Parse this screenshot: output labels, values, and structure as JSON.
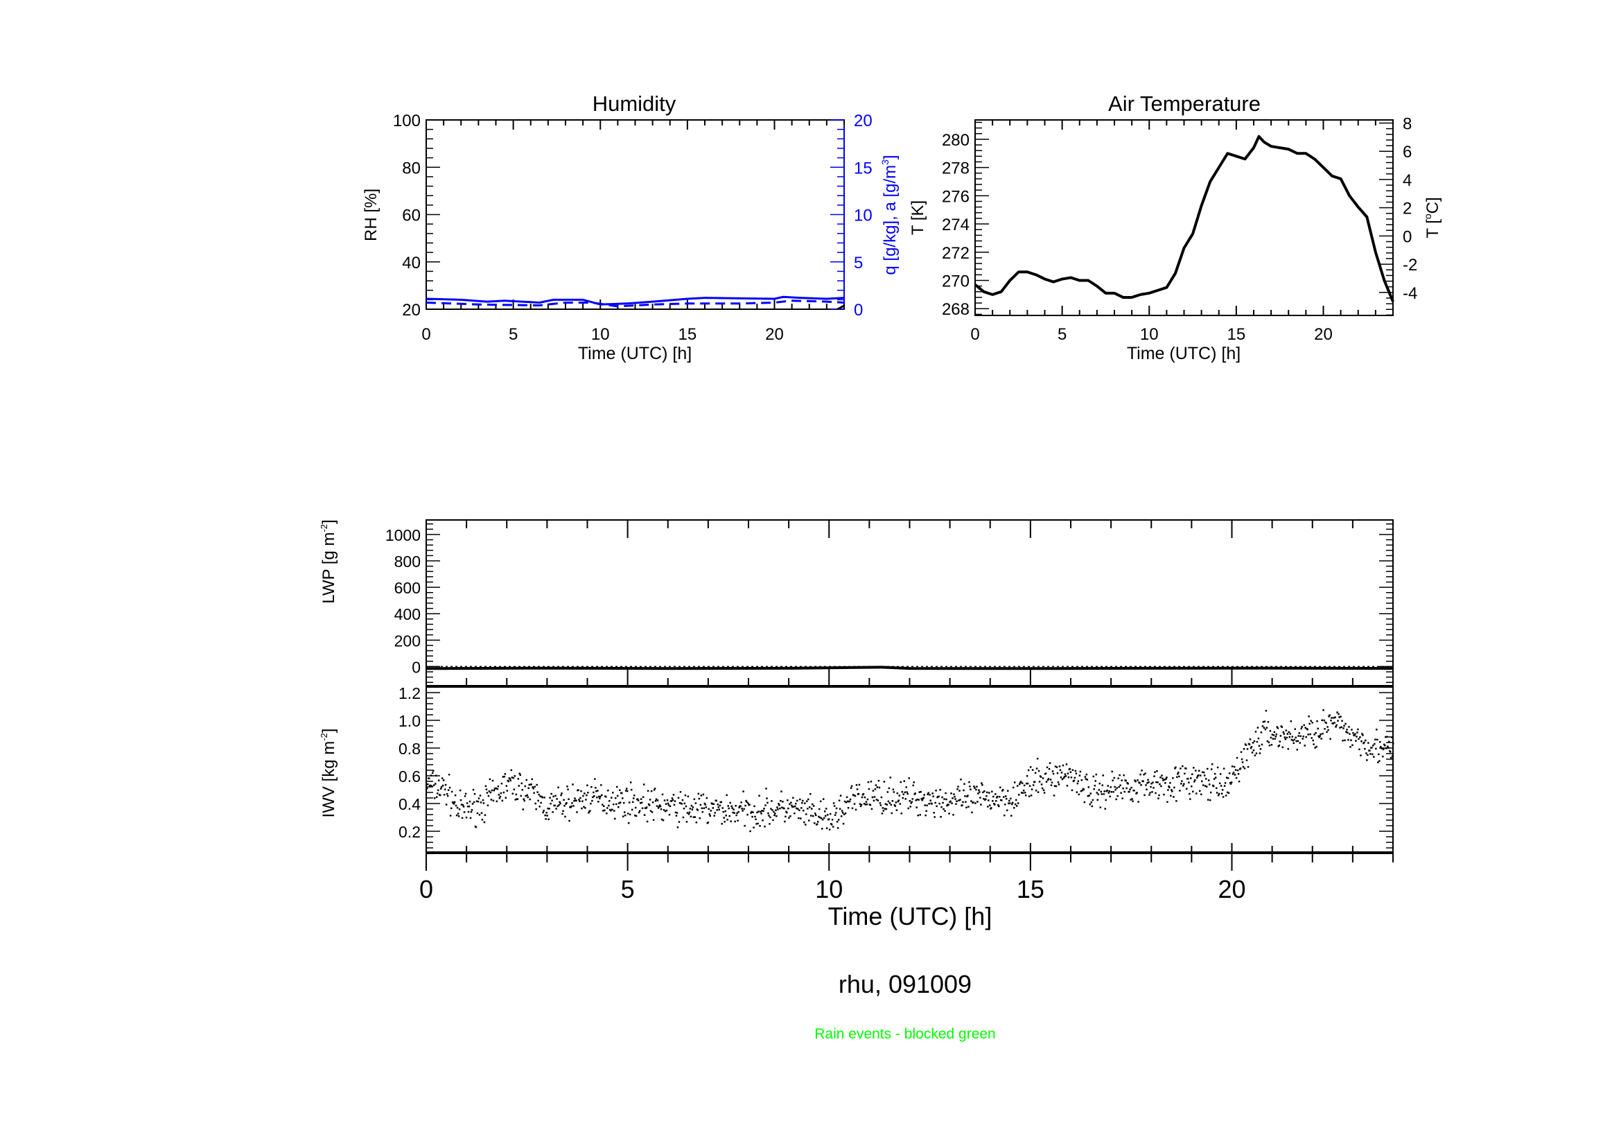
{
  "figure_title": "rhu, 091009",
  "footnote": "Rain events - blocked green",
  "colors": {
    "blue": "#0000ff",
    "black": "#000000",
    "green": "#00ff00"
  },
  "chart_data": [
    {
      "id": "humidity",
      "type": "line",
      "title": "Humidity",
      "xlabel": "Time (UTC) [h]",
      "ylabel": "RH [%]",
      "y2label": "q [g/kg], a [g/m",
      "y2label_sup": "3",
      "y2label_end": "]",
      "xlim": [
        0,
        24
      ],
      "ylim": [
        20,
        100
      ],
      "y2lim": [
        0,
        20
      ],
      "xticks": [
        "0",
        "5",
        "10",
        "15",
        "20"
      ],
      "yticks": [
        "20",
        "40",
        "60",
        "80",
        "100"
      ],
      "y2ticks": [
        "0",
        "5",
        "10",
        "15",
        "20"
      ],
      "series": [
        {
          "name": "q (solid)",
          "axis": "right",
          "style": "solid",
          "x": [
            0,
            2,
            3.5,
            4.5,
            6.5,
            7.3,
            9,
            10,
            11.5,
            13,
            15,
            16,
            20,
            20.5,
            21.5,
            23,
            24
          ],
          "y": [
            1.1,
            1.0,
            0.8,
            0.9,
            0.7,
            1.0,
            1.0,
            0.5,
            0.6,
            0.8,
            1.1,
            1.2,
            1.1,
            1.3,
            1.2,
            1.1,
            1.2
          ]
        },
        {
          "name": "a (dashed)",
          "axis": "right",
          "style": "dashed",
          "x": [
            0,
            3,
            6.5,
            8,
            9.5,
            11,
            13,
            15,
            18,
            20,
            21,
            23,
            24
          ],
          "y": [
            0.7,
            0.5,
            0.4,
            0.7,
            0.7,
            0.3,
            0.5,
            0.6,
            0.6,
            0.7,
            0.9,
            0.8,
            0.7
          ]
        },
        {
          "name": "RH",
          "axis": "left",
          "style": "solid",
          "x": [
            23.5,
            24
          ],
          "y": [
            19.5,
            21.5
          ]
        }
      ]
    },
    {
      "id": "air-temperature",
      "type": "line",
      "title": "Air Temperature",
      "xlabel": "Time (UTC) [h]",
      "ylabel": "T [K]",
      "y2label": "T [",
      "y2label_sup": "o",
      "y2label_end": "C]",
      "xlim": [
        0,
        24
      ],
      "ylim": [
        267.52,
        281.37
      ],
      "y2lim": [
        -5.63,
        8.22
      ],
      "xticks": [
        "0",
        "5",
        "10",
        "15",
        "20"
      ],
      "yticks": [
        "268",
        "270",
        "272",
        "274",
        "276",
        "278",
        "280"
      ],
      "y2ticks": [
        "-4",
        "-2",
        "0",
        "2",
        "4",
        "6",
        "8"
      ],
      "series": [
        {
          "name": "T",
          "axis": "left",
          "style": "solid",
          "x": [
            0,
            0.5,
            1,
            1.5,
            2,
            2.5,
            3,
            3.5,
            4,
            4.5,
            5,
            5.5,
            6,
            6.5,
            7,
            7.5,
            8,
            8.5,
            9,
            9.5,
            10,
            10.5,
            11,
            11.5,
            12,
            12.5,
            13,
            13.5,
            14,
            14.5,
            15,
            15.5,
            16,
            16.3,
            16.6,
            17,
            17.5,
            18,
            18.5,
            19,
            19.5,
            20,
            20.5,
            21,
            21.5,
            22,
            22.5,
            23,
            23.5,
            24
          ],
          "y": [
            269.7,
            269.2,
            269.0,
            269.2,
            270.0,
            270.6,
            270.6,
            270.4,
            270.1,
            269.9,
            270.1,
            270.2,
            270.0,
            270.0,
            269.6,
            269.1,
            269.1,
            268.8,
            268.8,
            269.0,
            269.1,
            269.3,
            269.5,
            270.5,
            272.3,
            273.3,
            275.3,
            277.0,
            278.0,
            279.0,
            278.8,
            278.6,
            279.4,
            280.2,
            279.8,
            279.5,
            279.4,
            279.3,
            279.0,
            279.0,
            278.6,
            278.0,
            277.4,
            277.2,
            276.0,
            275.2,
            274.5,
            272.0,
            270.0,
            268.5
          ]
        }
      ]
    },
    {
      "id": "lwp",
      "type": "line",
      "ylabel": "LWP [g m",
      "ylabel_sup": "-2",
      "ylabel_end": "]",
      "xlim": [
        0,
        24
      ],
      "ylim": [
        -150,
        1110
      ],
      "yticks": [
        "0",
        "200",
        "400",
        "600",
        "800",
        "1000"
      ],
      "reference_line": 0,
      "series": [
        {
          "name": "LWP",
          "x": [
            0,
            3,
            6,
            9,
            11.3,
            12,
            15,
            18,
            21,
            24
          ],
          "y": [
            -15,
            -12,
            -15,
            -13,
            -5,
            -14,
            -15,
            -13,
            -12,
            -14
          ]
        }
      ]
    },
    {
      "id": "iwv",
      "type": "scatter",
      "ylabel": "IWV [kg m",
      "ylabel_sup": "-2",
      "ylabel_end": "]",
      "xlabel": "Time (UTC) [h]",
      "xlim": [
        0,
        24
      ],
      "ylim": [
        0.045,
        1.245
      ],
      "xticks": [
        "0",
        "5",
        "10",
        "15",
        "20"
      ],
      "yticks": [
        "0.2",
        "0.4",
        "0.6",
        "0.8",
        "1.0",
        "1.2"
      ],
      "trend": {
        "x": [
          0,
          0.5,
          0.8,
          1.5,
          2,
          2.5,
          3,
          4,
          5,
          6,
          7,
          8,
          9,
          9.5,
          10,
          10.5,
          11,
          12,
          13,
          14,
          14.5,
          15,
          15.5,
          16,
          16.5,
          17,
          18,
          19,
          19.5,
          19.8,
          20.3,
          20.8,
          21.5,
          22,
          22.5,
          23,
          23.5,
          24
        ],
        "y": [
          0.55,
          0.5,
          0.35,
          0.42,
          0.55,
          0.5,
          0.38,
          0.45,
          0.42,
          0.38,
          0.36,
          0.35,
          0.37,
          0.33,
          0.28,
          0.42,
          0.46,
          0.45,
          0.42,
          0.45,
          0.45,
          0.55,
          0.6,
          0.62,
          0.48,
          0.52,
          0.55,
          0.57,
          0.55,
          0.5,
          0.75,
          0.92,
          0.88,
          0.93,
          0.98,
          0.9,
          0.82,
          0.78
        ]
      },
      "scatter_spread": 0.06,
      "n_points": 1400
    }
  ]
}
